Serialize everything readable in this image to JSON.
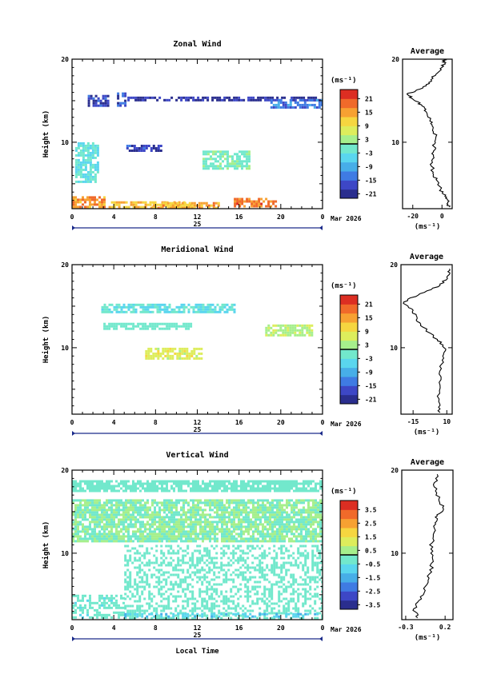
{
  "chart_data": [
    {
      "type": "heatmap",
      "title": "Zonal Wind",
      "ylabel": "Height (km)",
      "ylim": [
        2,
        20
      ],
      "xlim": [
        0,
        24
      ],
      "x_ticks": [
        "0",
        "4",
        "8",
        "12",
        "16",
        "20",
        "0"
      ],
      "y_ticks": [
        "10",
        "20"
      ],
      "date_day": "25",
      "date_label": "Mar 2026",
      "colorbar": {
        "unit": "(ms⁻¹)",
        "ticks": [
          "21",
          "15",
          "9",
          "3",
          "-3",
          "-9",
          "-15",
          "-21"
        ],
        "range": [
          -24,
          24
        ]
      },
      "regions": [
        {
          "x": [
            1.5,
            3.5
          ],
          "y": [
            14.5,
            15.7
          ],
          "value": -20
        },
        {
          "x": [
            4.3,
            5.2
          ],
          "y": [
            14.5,
            16
          ],
          "value": -17
        },
        {
          "x": [
            5.3,
            24
          ],
          "y": [
            15.2,
            15.5
          ],
          "value": -22
        },
        {
          "x": [
            19,
            24
          ],
          "y": [
            14.2,
            15.2
          ],
          "value": -14
        },
        {
          "x": [
            5.2,
            8.6
          ],
          "y": [
            8.9,
            9.7
          ],
          "value": -20
        },
        {
          "x": [
            0.3,
            2.5
          ],
          "y": [
            5.2,
            10
          ],
          "value": -4
        },
        {
          "x": [
            12.5,
            17
          ],
          "y": [
            6.8,
            9
          ],
          "value": -1
        },
        {
          "x": [
            0,
            3
          ],
          "y": [
            2.2,
            3.5
          ],
          "value": 15
        },
        {
          "x": [
            3.5,
            11.5
          ],
          "y": [
            2.2,
            2.9
          ],
          "value": 12
        },
        {
          "x": [
            7.5,
            14
          ],
          "y": [
            2.2,
            2.8
          ],
          "value": 13
        },
        {
          "x": [
            15.5,
            19.5
          ],
          "y": [
            2.2,
            3.3
          ],
          "value": 16
        }
      ],
      "average": {
        "title": "Average",
        "xlabel": "(ms⁻¹)",
        "xlim": [
          -27,
          7
        ],
        "x_ticks": [
          "-20",
          "0"
        ],
        "profile": [
          [
            5,
            2.2
          ],
          [
            4,
            2.8
          ],
          [
            2,
            3.5
          ],
          [
            -1,
            4.3
          ],
          [
            -4,
            5.5
          ],
          [
            -6,
            6.4
          ],
          [
            -7,
            7.8
          ],
          [
            -6,
            8.8
          ],
          [
            -5,
            9.8
          ],
          [
            -4,
            10.7
          ],
          [
            -6,
            11.8
          ],
          [
            -8,
            12.7
          ],
          [
            -11,
            13.7
          ],
          [
            -14,
            14.5
          ],
          [
            -20,
            15.2
          ],
          [
            -24,
            15.8
          ],
          [
            -15,
            16.4
          ],
          [
            -9,
            17.2
          ],
          [
            -4,
            18.2
          ],
          [
            0,
            19.0
          ],
          [
            2,
            19.5
          ],
          [
            1,
            20
          ]
        ]
      }
    },
    {
      "type": "heatmap",
      "title": "Meridional Wind",
      "ylabel": "Height (km)",
      "ylim": [
        2,
        20
      ],
      "xlim": [
        0,
        24
      ],
      "x_ticks": [
        "0",
        "4",
        "8",
        "12",
        "16",
        "20",
        "0"
      ],
      "y_ticks": [
        "10",
        "20"
      ],
      "date_day": "25",
      "date_label": "Mar 2026",
      "colorbar": {
        "unit": "(ms⁻¹)",
        "ticks": [
          "21",
          "15",
          "9",
          "3",
          "-3",
          "-9",
          "-15",
          "-21"
        ],
        "range": [
          -24,
          24
        ]
      },
      "regions": [
        {
          "x": [
            2.8,
            15.5
          ],
          "y": [
            14.4,
            15.3
          ],
          "value": -4
        },
        {
          "x": [
            7,
            12.5
          ],
          "y": [
            8.8,
            10
          ],
          "value": 6
        },
        {
          "x": [
            3,
            11.5
          ],
          "y": [
            12.3,
            13
          ],
          "value": -2
        },
        {
          "x": [
            18.5,
            23
          ],
          "y": [
            11.5,
            12.8
          ],
          "value": 3
        }
      ],
      "average": {
        "title": "Average",
        "xlabel": "(ms⁻¹)",
        "xlim": [
          -24,
          14
        ],
        "x_ticks": [
          "-15",
          "10"
        ],
        "profile": [
          [
            5,
            2.2
          ],
          [
            4,
            3.5
          ],
          [
            5,
            5.5
          ],
          [
            6,
            7.5
          ],
          [
            7,
            9
          ],
          [
            8,
            10
          ],
          [
            3,
            11
          ],
          [
            -8,
            12.5
          ],
          [
            -12,
            13.5
          ],
          [
            -15,
            14.5
          ],
          [
            -22,
            15.5
          ],
          [
            -10,
            16.5
          ],
          [
            5,
            17.5
          ],
          [
            10,
            18.5
          ],
          [
            12,
            19.5
          ]
        ]
      }
    },
    {
      "type": "heatmap",
      "title": "Vertical Wind",
      "xlabel": "Local Time",
      "ylabel": "Height (km)",
      "ylim": [
        2,
        20
      ],
      "xlim": [
        0,
        24
      ],
      "x_ticks": [
        "0",
        "4",
        "8",
        "12",
        "16",
        "20",
        "0"
      ],
      "y_ticks": [
        "10",
        "20"
      ],
      "date_day": "25",
      "date_label": "Mar 2026",
      "colorbar": {
        "unit": "(ms⁻¹)",
        "ticks": [
          "3.5",
          "2.5",
          "1.5",
          "0.5",
          "-0.5",
          "-1.5",
          "-2.5",
          "-3.5"
        ],
        "range": [
          -4,
          4
        ]
      },
      "regions": [
        {
          "x": [
            0,
            24
          ],
          "y": [
            11.5,
            16.5
          ],
          "value": 0.0
        },
        {
          "x": [
            0,
            24
          ],
          "y": [
            17.5,
            18.8
          ],
          "value": -0.3
        },
        {
          "x": [
            5,
            24
          ],
          "y": [
            2.3,
            11
          ],
          "value": -0.3
        },
        {
          "x": [
            0,
            5
          ],
          "y": [
            2.3,
            5
          ],
          "value": -0.4
        },
        {
          "x": [
            5,
            24
          ],
          "y": [
            2.3,
            2.8
          ],
          "value": -1.1
        }
      ],
      "average": {
        "title": "Average",
        "xlabel": "(ms⁻¹)",
        "xlim": [
          -0.35,
          0.3
        ],
        "x_ticks": [
          "-0.3",
          "0.2"
        ],
        "profile": [
          [
            -0.15,
            2.2
          ],
          [
            -0.2,
            3.3
          ],
          [
            -0.1,
            4.5
          ],
          [
            -0.05,
            6
          ],
          [
            0.0,
            7.5
          ],
          [
            0.05,
            9
          ],
          [
            0.02,
            10.5
          ],
          [
            0.05,
            12
          ],
          [
            0.08,
            13.5
          ],
          [
            0.1,
            14.5
          ],
          [
            0.18,
            15.3
          ],
          [
            0.12,
            16.5
          ],
          [
            0.06,
            18
          ],
          [
            0.1,
            19.5
          ]
        ]
      }
    }
  ]
}
